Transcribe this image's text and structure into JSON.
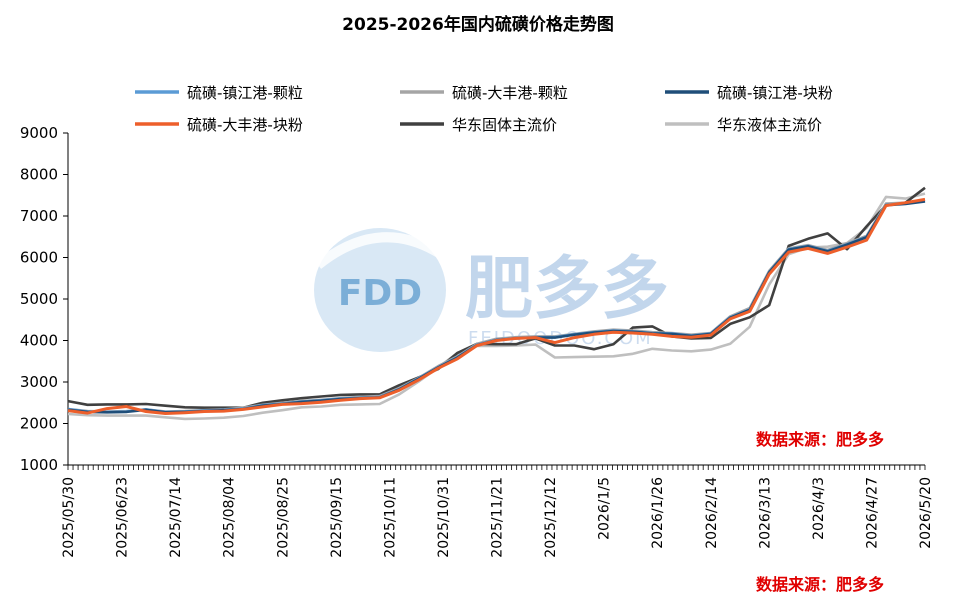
{
  "chart_data": {
    "type": "line",
    "title": "2025-2026年国内硫磺价格走势图",
    "xlabel": "",
    "ylabel": "",
    "ylim": [
      1000,
      9000
    ],
    "yticks": [
      1000,
      2000,
      3000,
      4000,
      5000,
      6000,
      7000,
      8000,
      9000
    ],
    "x_tick_labels": [
      "2025/05/30",
      "2025/06/23",
      "2025/07/14",
      "2025/08/04",
      "2025/08/25",
      "2025/09/15",
      "2025/10/11",
      "2025/10/31",
      "2025/11/21",
      "2025/12/12",
      "2026/1/5",
      "2026/1/26",
      "2026/2/14",
      "2026/3/13",
      "2026/4/3",
      "2026/4/27",
      "2026/5/20"
    ],
    "grid": false,
    "legend_position": "top",
    "series": [
      {
        "name": "硫磺-镇江港-颗粒",
        "color": "#5B9BD5",
        "values": [
          2350,
          2290,
          2280,
          2290,
          2340,
          2280,
          2290,
          2310,
          2330,
          2360,
          2440,
          2480,
          2530,
          2560,
          2600,
          2620,
          2640,
          2830,
          3090,
          3360,
          3600,
          3900,
          4020,
          4060,
          4080,
          4080,
          4150,
          4200,
          4240,
          4220,
          4180,
          4170,
          4120,
          4170,
          4560,
          4750,
          5650,
          6200,
          6280,
          6160,
          6320,
          6500,
          7270,
          7300,
          7360
        ]
      },
      {
        "name": "硫磺-大丰港-颗粒",
        "color": "#A5A5A5",
        "values": [
          2350,
          2300,
          2290,
          2300,
          2340,
          2290,
          2300,
          2320,
          2340,
          2380,
          2450,
          2500,
          2540,
          2570,
          2610,
          2640,
          2660,
          2850,
          3100,
          3380,
          3620,
          3920,
          4040,
          4080,
          4100,
          4100,
          4160,
          4220,
          4260,
          4240,
          4200,
          4180,
          4140,
          4180,
          4580,
          4780,
          5680,
          6220,
          6300,
          6180,
          6340,
          6520,
          7300,
          7320,
          7380
        ]
      },
      {
        "name": "硫磺-镇江港-块粉",
        "color": "#1F4E79",
        "values": [
          2330,
          2280,
          2270,
          2280,
          2330,
          2270,
          2280,
          2300,
          2320,
          2350,
          2430,
          2470,
          2520,
          2550,
          2590,
          2610,
          2630,
          2820,
          3080,
          3350,
          3590,
          3890,
          4010,
          4050,
          4070,
          4070,
          4140,
          4190,
          4230,
          4210,
          4170,
          4160,
          4110,
          4160,
          4550,
          4740,
          5640,
          6190,
          6270,
          6150,
          6310,
          6490,
          7260,
          7290,
          7350
        ]
      },
      {
        "name": "硫磺-大丰港-块粉",
        "color": "#ED5F2B",
        "values": [
          2310,
          2250,
          2360,
          2410,
          2290,
          2240,
          2260,
          2290,
          2300,
          2340,
          2400,
          2460,
          2480,
          2510,
          2560,
          2600,
          2620,
          2800,
          3050,
          3330,
          3560,
          3880,
          4000,
          4050,
          4070,
          3950,
          4070,
          4150,
          4200,
          4180,
          4150,
          4100,
          4080,
          4130,
          4520,
          4700,
          5600,
          6130,
          6220,
          6100,
          6250,
          6420,
          7250,
          7320,
          7400
        ]
      },
      {
        "name": "华东固体主流价",
        "color": "#404040",
        "values": [
          2540,
          2450,
          2460,
          2460,
          2470,
          2430,
          2390,
          2380,
          2380,
          2380,
          2500,
          2560,
          2610,
          2650,
          2690,
          2700,
          2700,
          2920,
          3110,
          3310,
          3700,
          3920,
          3910,
          3910,
          4050,
          3880,
          3880,
          3790,
          3910,
          4310,
          4340,
          4100,
          4050,
          4060,
          4400,
          4560,
          4850,
          6280,
          6450,
          6580,
          6200,
          6750,
          7260,
          7320,
          7680
        ]
      },
      {
        "name": "华东液体主流价",
        "color": "#BFBFBF",
        "values": [
          2230,
          2200,
          2190,
          2190,
          2190,
          2150,
          2110,
          2120,
          2140,
          2180,
          2260,
          2320,
          2390,
          2410,
          2450,
          2460,
          2470,
          2700,
          3010,
          3350,
          3700,
          3870,
          3870,
          3880,
          3900,
          3590,
          3600,
          3610,
          3620,
          3680,
          3800,
          3760,
          3740,
          3780,
          3920,
          4330,
          5350,
          6080,
          6240,
          6260,
          6350,
          6710,
          7460,
          7420,
          7540
        ]
      }
    ]
  },
  "watermark": {
    "text": "肥多多",
    "sub": "FEIDOODOO.COM",
    "logo": "FDD"
  },
  "source_note_1": "数据来源：肥多多",
  "source_note_2": "数据来源：肥多多"
}
